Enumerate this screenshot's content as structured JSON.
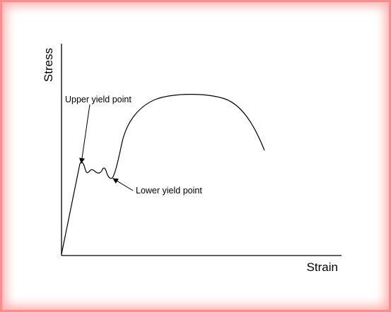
{
  "diagram": {
    "y_axis_label": "Stress",
    "x_axis_label": "Strain",
    "annotations": {
      "upper_yield": "Upper yield point",
      "lower_yield": "Lower yield point"
    },
    "colors": {
      "border_glow": "#ff8a8a",
      "curve": "#000000"
    }
  }
}
